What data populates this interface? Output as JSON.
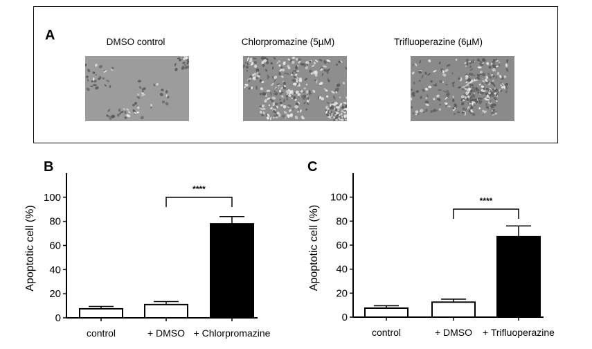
{
  "panel_a": {
    "label": "A",
    "images": [
      {
        "caption": "DMSO control",
        "tone": "#9c9c9c"
      },
      {
        "caption": "Chlorpromazine (5µM)",
        "tone": "#8e8e8e"
      },
      {
        "caption": "Trifluoperazine (6µM)",
        "tone": "#8a8a8a"
      }
    ]
  },
  "chart_data": [
    {
      "type": "bar",
      "panel": "B",
      "title": "",
      "xlabel": "",
      "ylabel": "Apoptotic cell (%)",
      "ylim": [
        0,
        120
      ],
      "yticks": [
        0,
        20,
        40,
        60,
        80,
        100
      ],
      "grid": false,
      "categories": [
        "control",
        "+ DMSO",
        "+ Chlorpromazine"
      ],
      "values": [
        7.5,
        11,
        78
      ],
      "errors": [
        2,
        2.5,
        6
      ],
      "fills": [
        "#ffffff",
        "#ffffff",
        "#000000"
      ],
      "significance": {
        "from": 1,
        "to": 2,
        "label": "****"
      }
    },
    {
      "type": "bar",
      "panel": "C",
      "title": "",
      "xlabel": "",
      "ylabel": "Apoptotic cell (%)",
      "ylim": [
        0,
        120
      ],
      "yticks": [
        0,
        20,
        40,
        60,
        80,
        100
      ],
      "grid": false,
      "categories": [
        "control",
        "+ DMSO",
        "+ Trifluoperazine"
      ],
      "values": [
        7.5,
        12.5,
        67
      ],
      "errors": [
        2,
        2.5,
        9
      ],
      "fills": [
        "#ffffff",
        "#ffffff",
        "#000000"
      ],
      "significance": {
        "from": 1,
        "to": 2,
        "label": "****"
      }
    }
  ]
}
